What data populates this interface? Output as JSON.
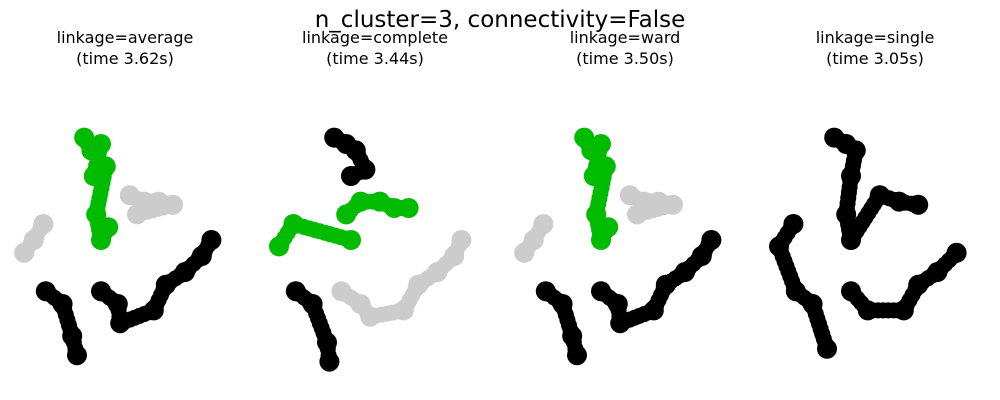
{
  "figure": {
    "title": "n_cluster=3, connectivity=False"
  },
  "colors": {
    "green": "#00bb00",
    "black": "#000000",
    "gray": "#cccccc"
  },
  "chart_data": [
    {
      "type": "scatter",
      "title_line1": "linkage=average",
      "title_line2": "(time 3.62s)",
      "grid": false,
      "axes_visible": false,
      "cluster_colors": {
        "A": "green",
        "B": "gray",
        "C": "black"
      },
      "blobs": [
        {
          "cluster": "A",
          "pts": [
            [
              0.33,
              0.18
            ],
            [
              0.36,
              0.22
            ],
            [
              0.4,
              0.2
            ],
            [
              0.37,
              0.3
            ],
            [
              0.42,
              0.27
            ],
            [
              0.38,
              0.42
            ],
            [
              0.4,
              0.5
            ],
            [
              0.43,
              0.46
            ]
          ]
        },
        {
          "cluster": "B",
          "pts": [
            [
              0.52,
              0.36
            ],
            [
              0.58,
              0.38
            ],
            [
              0.64,
              0.38
            ],
            [
              0.7,
              0.39
            ],
            [
              0.55,
              0.42
            ],
            [
              0.16,
              0.45
            ],
            [
              0.12,
              0.5
            ],
            [
              0.08,
              0.54
            ]
          ]
        },
        {
          "cluster": "C",
          "pts": [
            [
              0.17,
              0.66
            ],
            [
              0.24,
              0.7
            ],
            [
              0.28,
              0.8
            ],
            [
              0.3,
              0.86
            ],
            [
              0.4,
              0.66
            ],
            [
              0.47,
              0.7
            ],
            [
              0.48,
              0.76
            ],
            [
              0.62,
              0.72
            ],
            [
              0.67,
              0.64
            ],
            [
              0.75,
              0.6
            ],
            [
              0.82,
              0.55
            ],
            [
              0.86,
              0.5
            ]
          ]
        }
      ]
    },
    {
      "type": "scatter",
      "title_line1": "linkage=complete",
      "title_line2": "(time 3.44s)",
      "grid": false,
      "axes_visible": false,
      "cluster_colors": {
        "A": "black",
        "B": "green",
        "C": "gray",
        "D": "black"
      },
      "blobs": [
        {
          "cluster": "A",
          "pts": [
            [
              0.33,
              0.18
            ],
            [
              0.38,
              0.2
            ],
            [
              0.42,
              0.22
            ],
            [
              0.46,
              0.28
            ],
            [
              0.4,
              0.3
            ]
          ]
        },
        {
          "cluster": "B",
          "pts": [
            [
              0.38,
              0.42
            ],
            [
              0.44,
              0.38
            ],
            [
              0.52,
              0.38
            ],
            [
              0.58,
              0.4
            ],
            [
              0.64,
              0.4
            ],
            [
              0.4,
              0.5
            ],
            [
              0.16,
              0.45
            ],
            [
              0.1,
              0.52
            ]
          ]
        },
        {
          "cluster": "C",
          "pts": [
            [
              0.36,
              0.66
            ],
            [
              0.44,
              0.7
            ],
            [
              0.48,
              0.74
            ],
            [
              0.62,
              0.72
            ],
            [
              0.68,
              0.64
            ],
            [
              0.76,
              0.6
            ],
            [
              0.83,
              0.55
            ],
            [
              0.86,
              0.5
            ]
          ]
        },
        {
          "cluster": "D",
          "pts": [
            [
              0.17,
              0.66
            ],
            [
              0.24,
              0.7
            ],
            [
              0.3,
              0.82
            ],
            [
              0.31,
              0.88
            ]
          ]
        }
      ]
    },
    {
      "type": "scatter",
      "title_line1": "linkage=ward",
      "title_line2": "(time 3.50s)",
      "grid": false,
      "axes_visible": false,
      "cluster_colors": {
        "A": "green",
        "B": "gray",
        "C": "black"
      },
      "blobs": [
        {
          "cluster": "A",
          "pts": [
            [
              0.33,
              0.18
            ],
            [
              0.36,
              0.22
            ],
            [
              0.4,
              0.2
            ],
            [
              0.37,
              0.3
            ],
            [
              0.42,
              0.27
            ],
            [
              0.38,
              0.42
            ],
            [
              0.4,
              0.5
            ],
            [
              0.43,
              0.46
            ]
          ]
        },
        {
          "cluster": "B",
          "pts": [
            [
              0.52,
              0.36
            ],
            [
              0.58,
              0.38
            ],
            [
              0.64,
              0.38
            ],
            [
              0.7,
              0.39
            ],
            [
              0.55,
              0.42
            ],
            [
              0.16,
              0.45
            ],
            [
              0.12,
              0.5
            ],
            [
              0.08,
              0.54
            ]
          ]
        },
        {
          "cluster": "C",
          "pts": [
            [
              0.17,
              0.66
            ],
            [
              0.24,
              0.7
            ],
            [
              0.28,
              0.8
            ],
            [
              0.3,
              0.86
            ],
            [
              0.4,
              0.66
            ],
            [
              0.47,
              0.7
            ],
            [
              0.48,
              0.76
            ],
            [
              0.62,
              0.72
            ],
            [
              0.67,
              0.64
            ],
            [
              0.75,
              0.6
            ],
            [
              0.82,
              0.55
            ],
            [
              0.86,
              0.5
            ]
          ]
        }
      ]
    },
    {
      "type": "scatter",
      "title_line1": "linkage=single",
      "title_line2": "(time 3.05s)",
      "grid": false,
      "axes_visible": false,
      "cluster_colors": {
        "A": "black"
      },
      "blobs": [
        {
          "cluster": "A",
          "pts": [
            [
              0.33,
              0.18
            ],
            [
              0.38,
              0.2
            ],
            [
              0.42,
              0.22
            ],
            [
              0.4,
              0.3
            ],
            [
              0.38,
              0.42
            ],
            [
              0.4,
              0.5
            ],
            [
              0.52,
              0.36
            ],
            [
              0.6,
              0.38
            ],
            [
              0.68,
              0.39
            ],
            [
              0.16,
              0.45
            ],
            [
              0.1,
              0.52
            ],
            [
              0.17,
              0.66
            ],
            [
              0.24,
              0.7
            ],
            [
              0.3,
              0.84
            ],
            [
              0.4,
              0.66
            ],
            [
              0.47,
              0.72
            ],
            [
              0.62,
              0.72
            ],
            [
              0.68,
              0.64
            ],
            [
              0.76,
              0.6
            ],
            [
              0.84,
              0.54
            ]
          ]
        }
      ]
    }
  ]
}
